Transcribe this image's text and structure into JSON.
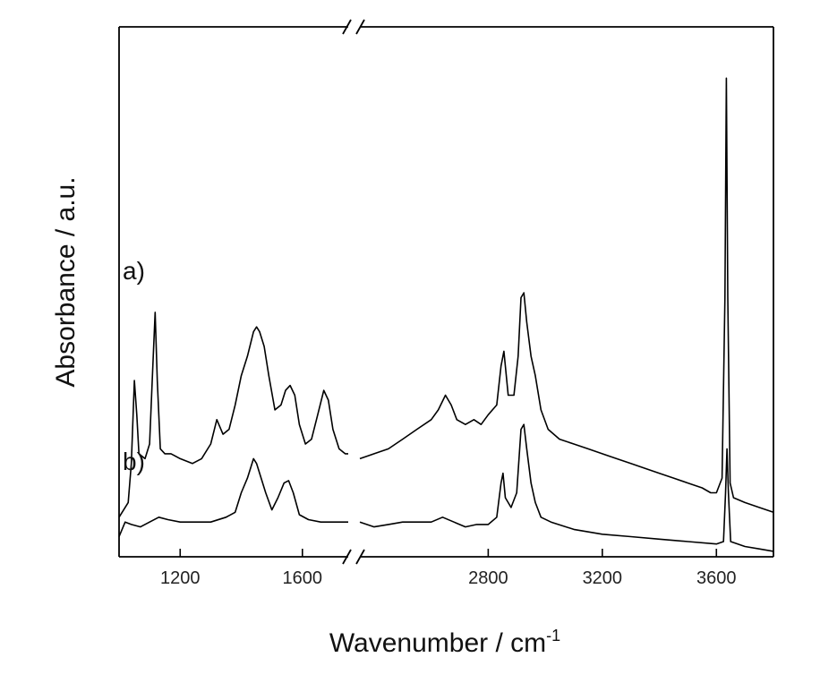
{
  "chart_data": {
    "type": "line",
    "title": "",
    "xlabel": "Wavenumber / cm",
    "xlabel_superscript": "-1",
    "ylabel": "Absorbance / a.u.",
    "x_axis_break": "broken axis",
    "segments": [
      {
        "xlim": [
          1000,
          1750
        ],
        "ticks": [
          1200,
          1600
        ]
      },
      {
        "xlim": [
          2350,
          3800
        ],
        "ticks": [
          2800,
          3200,
          3600
        ]
      }
    ],
    "ylim": [
      0,
      1
    ],
    "y_ticks_shown": false,
    "grid": false,
    "series": [
      {
        "name": "a)",
        "points": [
          [
            1000,
            0.05
          ],
          [
            1030,
            0.08
          ],
          [
            1040,
            0.16
          ],
          [
            1050,
            0.33
          ],
          [
            1058,
            0.26
          ],
          [
            1065,
            0.18
          ],
          [
            1085,
            0.17
          ],
          [
            1100,
            0.2
          ],
          [
            1110,
            0.35
          ],
          [
            1118,
            0.47
          ],
          [
            1125,
            0.33
          ],
          [
            1135,
            0.19
          ],
          [
            1150,
            0.18
          ],
          [
            1170,
            0.18
          ],
          [
            1200,
            0.17
          ],
          [
            1240,
            0.16
          ],
          [
            1270,
            0.17
          ],
          [
            1300,
            0.2
          ],
          [
            1320,
            0.25
          ],
          [
            1340,
            0.22
          ],
          [
            1360,
            0.23
          ],
          [
            1380,
            0.28
          ],
          [
            1400,
            0.34
          ],
          [
            1420,
            0.38
          ],
          [
            1440,
            0.43
          ],
          [
            1450,
            0.44
          ],
          [
            1460,
            0.43
          ],
          [
            1475,
            0.4
          ],
          [
            1490,
            0.34
          ],
          [
            1510,
            0.27
          ],
          [
            1530,
            0.28
          ],
          [
            1545,
            0.31
          ],
          [
            1560,
            0.32
          ],
          [
            1575,
            0.3
          ],
          [
            1590,
            0.24
          ],
          [
            1610,
            0.2
          ],
          [
            1630,
            0.21
          ],
          [
            1650,
            0.26
          ],
          [
            1670,
            0.31
          ],
          [
            1685,
            0.29
          ],
          [
            1700,
            0.23
          ],
          [
            1720,
            0.19
          ],
          [
            1740,
            0.18
          ],
          [
            1750,
            0.18
          ],
          [
            2350,
            0.17
          ],
          [
            2400,
            0.18
          ],
          [
            2450,
            0.19
          ],
          [
            2500,
            0.21
          ],
          [
            2550,
            0.23
          ],
          [
            2600,
            0.25
          ],
          [
            2625,
            0.27
          ],
          [
            2650,
            0.3
          ],
          [
            2670,
            0.28
          ],
          [
            2690,
            0.25
          ],
          [
            2720,
            0.24
          ],
          [
            2750,
            0.25
          ],
          [
            2775,
            0.24
          ],
          [
            2800,
            0.26
          ],
          [
            2830,
            0.28
          ],
          [
            2845,
            0.36
          ],
          [
            2855,
            0.39
          ],
          [
            2870,
            0.3
          ],
          [
            2890,
            0.3
          ],
          [
            2905,
            0.38
          ],
          [
            2915,
            0.5
          ],
          [
            2925,
            0.51
          ],
          [
            2935,
            0.45
          ],
          [
            2950,
            0.38
          ],
          [
            2965,
            0.34
          ],
          [
            2985,
            0.27
          ],
          [
            3010,
            0.23
          ],
          [
            3050,
            0.21
          ],
          [
            3100,
            0.2
          ],
          [
            3150,
            0.19
          ],
          [
            3200,
            0.18
          ],
          [
            3250,
            0.17
          ],
          [
            3300,
            0.16
          ],
          [
            3350,
            0.15
          ],
          [
            3400,
            0.14
          ],
          [
            3450,
            0.13
          ],
          [
            3500,
            0.12
          ],
          [
            3550,
            0.11
          ],
          [
            3580,
            0.1
          ],
          [
            3600,
            0.1
          ],
          [
            3620,
            0.13
          ],
          [
            3630,
            0.5
          ],
          [
            3635,
            0.95
          ],
          [
            3640,
            0.5
          ],
          [
            3648,
            0.12
          ],
          [
            3660,
            0.09
          ],
          [
            3700,
            0.08
          ],
          [
            3750,
            0.07
          ],
          [
            3800,
            0.06
          ]
        ]
      },
      {
        "name": "b)",
        "points": [
          [
            1000,
            0.01
          ],
          [
            1020,
            0.04
          ],
          [
            1040,
            0.035
          ],
          [
            1070,
            0.03
          ],
          [
            1100,
            0.04
          ],
          [
            1130,
            0.05
          ],
          [
            1160,
            0.045
          ],
          [
            1200,
            0.04
          ],
          [
            1250,
            0.04
          ],
          [
            1300,
            0.04
          ],
          [
            1350,
            0.05
          ],
          [
            1380,
            0.06
          ],
          [
            1400,
            0.1
          ],
          [
            1420,
            0.13
          ],
          [
            1440,
            0.17
          ],
          [
            1450,
            0.16
          ],
          [
            1465,
            0.13
          ],
          [
            1480,
            0.1
          ],
          [
            1500,
            0.065
          ],
          [
            1520,
            0.09
          ],
          [
            1540,
            0.12
          ],
          [
            1555,
            0.125
          ],
          [
            1570,
            0.1
          ],
          [
            1590,
            0.055
          ],
          [
            1620,
            0.045
          ],
          [
            1660,
            0.04
          ],
          [
            1700,
            0.04
          ],
          [
            1750,
            0.04
          ],
          [
            2350,
            0.04
          ],
          [
            2400,
            0.03
          ],
          [
            2450,
            0.035
          ],
          [
            2500,
            0.04
          ],
          [
            2550,
            0.04
          ],
          [
            2600,
            0.04
          ],
          [
            2640,
            0.05
          ],
          [
            2680,
            0.04
          ],
          [
            2720,
            0.03
          ],
          [
            2760,
            0.035
          ],
          [
            2800,
            0.035
          ],
          [
            2830,
            0.05
          ],
          [
            2845,
            0.12
          ],
          [
            2852,
            0.14
          ],
          [
            2860,
            0.09
          ],
          [
            2880,
            0.07
          ],
          [
            2900,
            0.1
          ],
          [
            2915,
            0.23
          ],
          [
            2925,
            0.24
          ],
          [
            2935,
            0.19
          ],
          [
            2950,
            0.12
          ],
          [
            2965,
            0.08
          ],
          [
            2985,
            0.05
          ],
          [
            3020,
            0.04
          ],
          [
            3100,
            0.025
          ],
          [
            3200,
            0.015
          ],
          [
            3300,
            0.01
          ],
          [
            3400,
            0.005
          ],
          [
            3500,
            0.0
          ],
          [
            3600,
            -0.005
          ],
          [
            3625,
            0.0
          ],
          [
            3632,
            0.1
          ],
          [
            3637,
            0.19
          ],
          [
            3642,
            0.1
          ],
          [
            3650,
            0.0
          ],
          [
            3700,
            -0.01
          ],
          [
            3750,
            -0.015
          ],
          [
            3800,
            -0.02
          ]
        ]
      }
    ]
  }
}
